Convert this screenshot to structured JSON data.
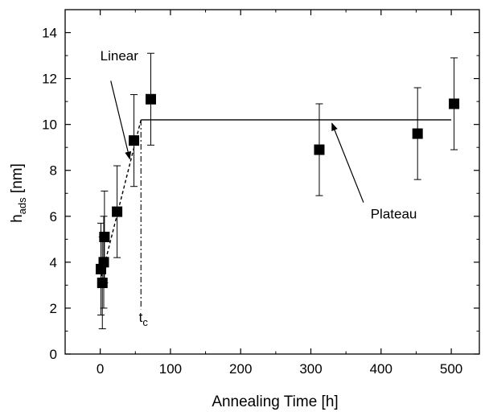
{
  "chart_data": {
    "type": "scatter",
    "xlabel": "Annealing Time [h]",
    "ylabel_main": "h",
    "ylabel_sub": "ads",
    "ylabel_suffix": " [nm]",
    "xlim": [
      -50,
      540
    ],
    "ylim": [
      0,
      15
    ],
    "xticks": [
      0,
      100,
      200,
      300,
      400,
      500
    ],
    "yticks": [
      0,
      2,
      4,
      6,
      8,
      10,
      12,
      14
    ],
    "grid": false,
    "points": [
      {
        "x": 1,
        "y": 3.7,
        "err": 2.0
      },
      {
        "x": 3,
        "y": 3.1,
        "err": 2.0
      },
      {
        "x": 5,
        "y": 4.0,
        "err": 2.0
      },
      {
        "x": 6,
        "y": 5.1,
        "err": 2.0
      },
      {
        "x": 24,
        "y": 6.2,
        "err": 2.0
      },
      {
        "x": 48,
        "y": 9.3,
        "err": 2.0
      },
      {
        "x": 72,
        "y": 11.1,
        "err": 2.0
      },
      {
        "x": 312,
        "y": 8.9,
        "err": 2.0
      },
      {
        "x": 452,
        "y": 9.6,
        "err": 2.0
      },
      {
        "x": 504,
        "y": 10.9,
        "err": 2.0
      }
    ],
    "fits": {
      "linear": [
        [
          2,
          3.4
        ],
        [
          58,
          10.2
        ]
      ],
      "plateau": {
        "y": 10.2,
        "x_start": 58,
        "x_end": 500
      },
      "tc_x": 58
    },
    "annotations": [
      {
        "id": "linear",
        "text": "Linear",
        "text_at": [
          0,
          12.8
        ],
        "arrow_from": [
          15,
          11.9
        ],
        "arrow_to": [
          42,
          8.5
        ]
      },
      {
        "id": "plateau",
        "text": "Plateau",
        "text_at": [
          385,
          5.9
        ],
        "arrow_from": [
          375,
          6.6
        ],
        "arrow_to": [
          330,
          10.05
        ]
      },
      {
        "id": "tc",
        "text": "t",
        "sub": "c",
        "text_at": [
          55,
          1.4
        ]
      }
    ]
  }
}
